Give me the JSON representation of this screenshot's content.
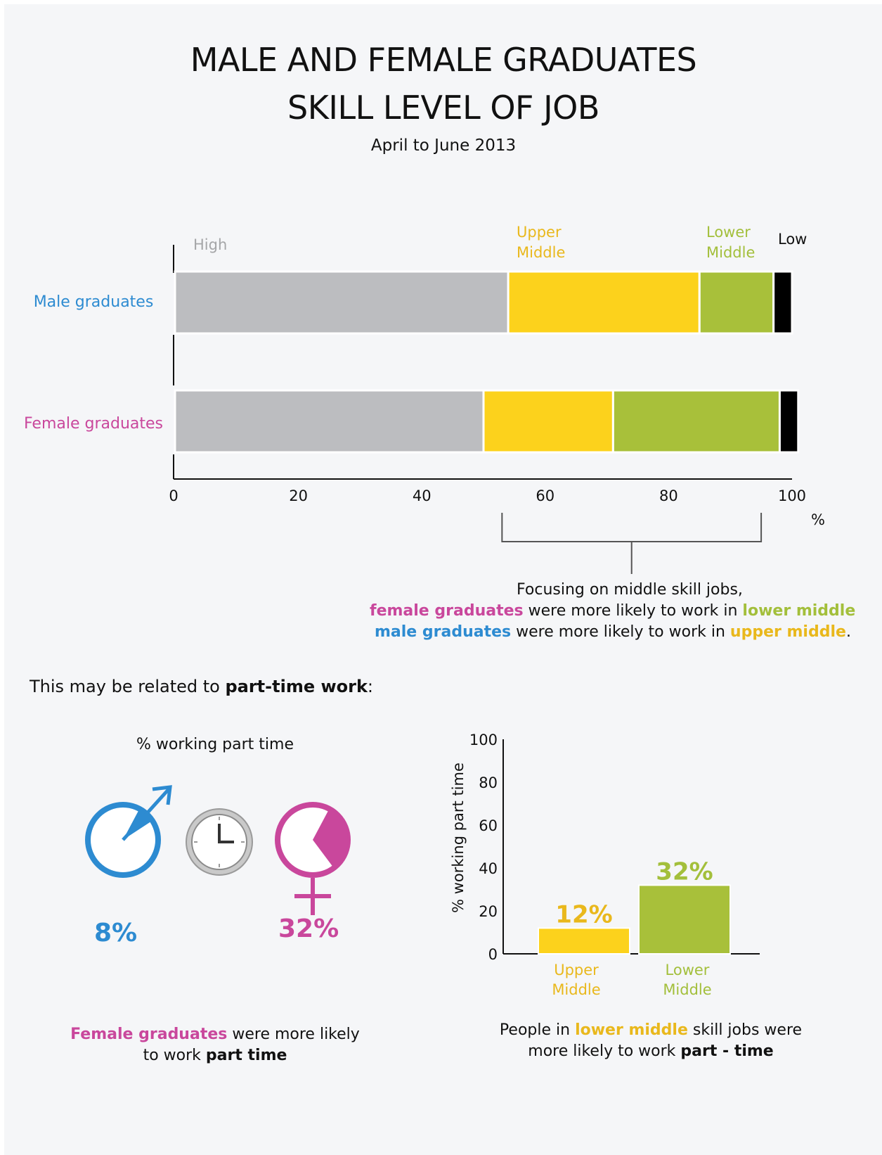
{
  "title_line1": "MALE AND FEMALE GRADUATES",
  "title_line2": "SKILL LEVEL OF JOB",
  "subtitle": "April to June 2013",
  "colors": {
    "high": "#bcbdc0",
    "upper_middle": "#fcd21c",
    "lower_middle": "#a8c03a",
    "low": "#000000",
    "male": "#2d8bd1",
    "female": "#c9479c",
    "upper_text": "#e9b81c",
    "lower_text": "#a3bf3b"
  },
  "chart_data": [
    {
      "type": "bar",
      "orientation": "horizontal",
      "stacked": true,
      "categories": [
        "Male graduates",
        "Female graduates"
      ],
      "series": [
        {
          "name": "High",
          "values": [
            54,
            50
          ]
        },
        {
          "name": "Upper Middle",
          "values": [
            31,
            21
          ]
        },
        {
          "name": "Lower Middle",
          "values": [
            12,
            27
          ]
        },
        {
          "name": "Low",
          "values": [
            3,
            3
          ]
        }
      ],
      "legend_labels": {
        "high": "High",
        "upper": [
          "Upper",
          "Middle"
        ],
        "lower": [
          "Lower",
          "Middle"
        ],
        "low": "Low"
      },
      "xticks": [
        "0",
        "20",
        "40",
        "60",
        "80",
        "100"
      ],
      "xlim": [
        0,
        100
      ],
      "xunit": "%",
      "bracket_range": [
        53,
        95
      ]
    },
    {
      "type": "bar",
      "categories": [
        [
          "Upper",
          "Middle"
        ],
        [
          "Lower",
          "Middle"
        ]
      ],
      "values": [
        12,
        32
      ],
      "data_labels": [
        "12%",
        "32%"
      ],
      "ylabel": "% working part time",
      "yticks": [
        "0",
        "20",
        "40",
        "60",
        "80",
        "100"
      ],
      "ylim": [
        0,
        100
      ]
    }
  ],
  "note": {
    "line1": "Focusing on middle skill jobs,",
    "line2_a": "female graduates",
    "line2_b": " were more likely to work in ",
    "line2_c": "lower middle",
    "line3_a": "male graduates",
    "line3_b": " were more likely to work in ",
    "line3_c": "upper middle",
    "line3_d": "."
  },
  "intro": {
    "a": "This may be related to ",
    "b": "part-time work",
    "c": ":"
  },
  "parttime": {
    "heading": "% working part time",
    "male_value": 8,
    "female_value": 32,
    "male_label": "8%",
    "female_label": "32%"
  },
  "caption_left": {
    "a": "Female graduates",
    "b": " were more likely",
    "c": "to work ",
    "d": "part time"
  },
  "caption_right": {
    "a": "People in ",
    "b": "lower middle",
    "c": " skill jobs were",
    "d": "more likely to work ",
    "e": "part - time"
  }
}
